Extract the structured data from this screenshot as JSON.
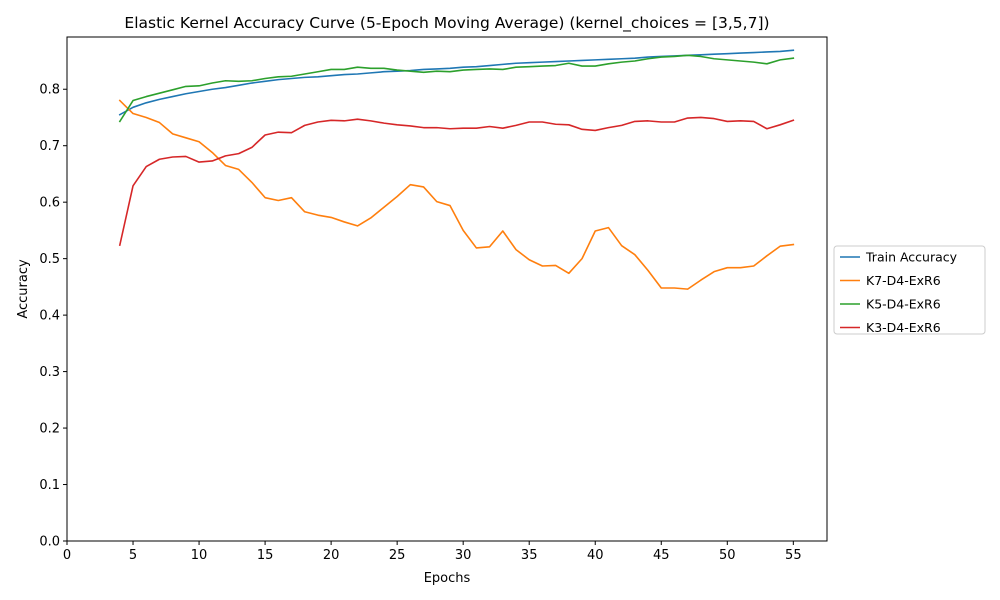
{
  "chart_data": {
    "type": "line",
    "title": "Elastic Kernel Accuracy Curve (5-Epoch Moving Average) (kernel_choices = [3,5,7])",
    "xlabel": "Epochs",
    "ylabel": "Accuracy",
    "xlim": [
      0,
      57.55
    ],
    "ylim": [
      0,
      0.8925
    ],
    "xticks": [
      0,
      5,
      10,
      15,
      20,
      25,
      30,
      35,
      40,
      45,
      50,
      55
    ],
    "yticks": [
      0.0,
      0.1,
      0.2,
      0.3,
      0.4,
      0.5,
      0.6,
      0.7,
      0.8
    ],
    "ytick_labels": [
      "0.0",
      "0.1",
      "0.2",
      "0.3",
      "0.4",
      "0.5",
      "0.6",
      "0.7",
      "0.8"
    ],
    "grid": false,
    "legend_position": "outside-right",
    "x": [
      4,
      5,
      6,
      7,
      8,
      9,
      10,
      11,
      12,
      13,
      14,
      15,
      16,
      17,
      18,
      19,
      20,
      21,
      22,
      23,
      24,
      25,
      26,
      27,
      28,
      29,
      30,
      31,
      32,
      33,
      34,
      35,
      36,
      37,
      38,
      39,
      40,
      41,
      42,
      43,
      44,
      45,
      46,
      47,
      48,
      49,
      50,
      51,
      52,
      53,
      54,
      55
    ],
    "series": [
      {
        "name": "Train Accuracy",
        "color": "#1f77b4",
        "values": [
          0.755,
          0.768,
          0.776,
          0.782,
          0.787,
          0.792,
          0.796,
          0.8,
          0.803,
          0.807,
          0.811,
          0.814,
          0.817,
          0.819,
          0.821,
          0.822,
          0.824,
          0.826,
          0.827,
          0.829,
          0.831,
          0.832,
          0.833,
          0.835,
          0.836,
          0.837,
          0.839,
          0.84,
          0.842,
          0.844,
          0.846,
          0.847,
          0.848,
          0.849,
          0.85,
          0.851,
          0.852,
          0.853,
          0.854,
          0.855,
          0.857,
          0.858,
          0.859,
          0.86,
          0.861,
          0.862,
          0.863,
          0.864,
          0.865,
          0.866,
          0.867,
          0.869
        ]
      },
      {
        "name": "K7-D4-ExR6",
        "color": "#ff7f0e",
        "values": [
          0.78,
          0.757,
          0.75,
          0.741,
          0.721,
          0.714,
          0.707,
          0.688,
          0.665,
          0.658,
          0.635,
          0.608,
          0.603,
          0.608,
          0.583,
          0.577,
          0.573,
          0.565,
          0.558,
          0.572,
          0.591,
          0.61,
          0.631,
          0.627,
          0.601,
          0.594,
          0.55,
          0.519,
          0.521,
          0.549,
          0.516,
          0.498,
          0.487,
          0.488,
          0.474,
          0.5,
          0.549,
          0.555,
          0.523,
          0.507,
          0.479,
          0.448,
          0.448,
          0.446,
          0.462,
          0.477,
          0.484,
          0.484,
          0.487,
          0.505,
          0.522,
          0.525
        ]
      },
      {
        "name": "K5-D4-ExR6",
        "color": "#2ca02c",
        "values": [
          0.743,
          0.78,
          0.787,
          0.793,
          0.799,
          0.805,
          0.806,
          0.811,
          0.815,
          0.814,
          0.815,
          0.819,
          0.822,
          0.823,
          0.827,
          0.831,
          0.835,
          0.835,
          0.839,
          0.837,
          0.837,
          0.834,
          0.832,
          0.83,
          0.832,
          0.831,
          0.834,
          0.835,
          0.836,
          0.835,
          0.839,
          0.84,
          0.841,
          0.842,
          0.846,
          0.841,
          0.841,
          0.845,
          0.848,
          0.85,
          0.854,
          0.857,
          0.858,
          0.86,
          0.858,
          0.854,
          0.852,
          0.85,
          0.848,
          0.845,
          0.852,
          0.855
        ]
      },
      {
        "name": "K3-D4-ExR6",
        "color": "#d62728",
        "values": [
          0.524,
          0.629,
          0.663,
          0.676,
          0.68,
          0.681,
          0.671,
          0.673,
          0.682,
          0.686,
          0.697,
          0.719,
          0.724,
          0.723,
          0.736,
          0.742,
          0.745,
          0.744,
          0.747,
          0.744,
          0.74,
          0.737,
          0.735,
          0.732,
          0.732,
          0.73,
          0.731,
          0.731,
          0.734,
          0.731,
          0.736,
          0.742,
          0.742,
          0.738,
          0.737,
          0.729,
          0.727,
          0.732,
          0.736,
          0.743,
          0.744,
          0.742,
          0.742,
          0.749,
          0.75,
          0.748,
          0.743,
          0.744,
          0.743,
          0.73,
          0.737,
          0.745
        ]
      }
    ]
  }
}
